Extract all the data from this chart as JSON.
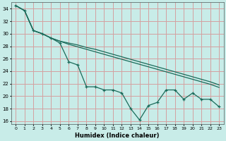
{
  "xlabel": "Humidex (Indice chaleur)",
  "bg_color": "#c8ece8",
  "grid_color": "#d4a0a0",
  "line_color": "#1a6b5a",
  "xlim": [
    -0.5,
    23.5
  ],
  "ylim": [
    15.5,
    35.0
  ],
  "xticks": [
    0,
    1,
    2,
    3,
    4,
    5,
    6,
    7,
    8,
    9,
    10,
    11,
    12,
    13,
    14,
    15,
    16,
    17,
    18,
    19,
    20,
    21,
    22,
    23
  ],
  "yticks": [
    16,
    18,
    20,
    22,
    24,
    26,
    28,
    30,
    32,
    34
  ],
  "series1_x": [
    0,
    1,
    2,
    3,
    4,
    5,
    6,
    7,
    8,
    9,
    10,
    11,
    12,
    13,
    14,
    15,
    16,
    17,
    18,
    19,
    20,
    21,
    22,
    23
  ],
  "series1_y": [
    34.5,
    33.7,
    30.5,
    30.0,
    29.3,
    28.8,
    28.5,
    28.2,
    27.8,
    27.5,
    27.1,
    26.7,
    26.3,
    25.9,
    25.5,
    25.1,
    24.7,
    24.3,
    23.9,
    23.5,
    23.1,
    22.7,
    22.3,
    21.8
  ],
  "series2_x": [
    0,
    1,
    2,
    3,
    4,
    5,
    6,
    7,
    8,
    9,
    10,
    11,
    12,
    13,
    14,
    15,
    16,
    17,
    18,
    19,
    20,
    21,
    22,
    23
  ],
  "series2_y": [
    34.5,
    33.7,
    30.5,
    30.0,
    29.3,
    28.8,
    28.3,
    27.9,
    27.5,
    27.1,
    26.7,
    26.3,
    25.9,
    25.5,
    25.1,
    24.7,
    24.3,
    23.9,
    23.5,
    23.1,
    22.7,
    22.3,
    21.9,
    21.4
  ],
  "series3_x": [
    0,
    1,
    2,
    3,
    4,
    5,
    6,
    7,
    8,
    9,
    10,
    11,
    12,
    13,
    14,
    15,
    16,
    17,
    18,
    19,
    20,
    21,
    22,
    23
  ],
  "series3_y": [
    34.5,
    33.7,
    30.5,
    30.0,
    29.3,
    28.5,
    25.5,
    25.0,
    21.5,
    21.5,
    21.0,
    21.0,
    20.5,
    18.0,
    16.2,
    18.5,
    19.0,
    21.0,
    21.0,
    19.5,
    20.5,
    19.5,
    19.5,
    18.3
  ]
}
